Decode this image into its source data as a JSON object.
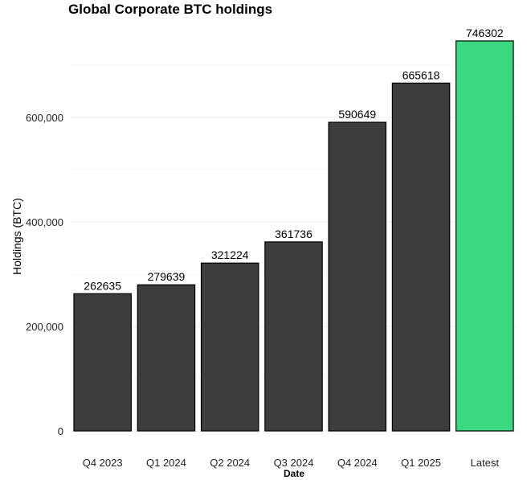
{
  "chart_data": {
    "type": "bar",
    "title": "Global Corporate BTC holdings",
    "xlabel": "Date",
    "ylabel": "Holdings (BTC)",
    "categories": [
      "Q4 2023",
      "Q1 2024",
      "Q2 2024",
      "Q3 2024",
      "Q4 2024",
      "Q1 2025",
      "Latest"
    ],
    "values": [
      262635,
      279639,
      321224,
      361736,
      590649,
      665618,
      746302
    ],
    "data_labels": [
      "262635",
      "279639",
      "321224",
      "361736",
      "590649",
      "665618",
      "746302"
    ],
    "ylim": [
      0,
      755000
    ],
    "yticks": [
      0,
      200000,
      400000,
      600000
    ],
    "ytick_labels": [
      "0",
      "200,000",
      "400,000",
      "600,000"
    ],
    "grid": true,
    "legend": "none",
    "colors": {
      "default_bar": "#3c3d3f",
      "highlight_bar": "#3ad97f",
      "bar_outline": "#000000"
    },
    "highlight_category": "Latest"
  }
}
